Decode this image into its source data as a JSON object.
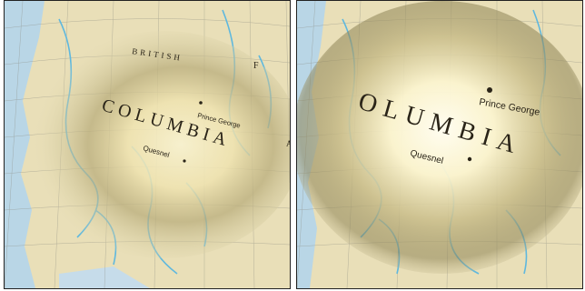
{
  "colors": {
    "land": "#e9dfb8",
    "water": "#b9d6e6",
    "river": "#5fb8de",
    "grid": "#8a8a80",
    "lens_glow": "#fffbe0",
    "lens_halo": "#8a7f52"
  },
  "left_panel": {
    "region_label_top": "BRITISH",
    "region_letter_right": "F",
    "region_label_main": [
      "COLUMBIA"
    ],
    "right_edge_letter": "A",
    "cities": [
      {
        "name": "Prince George"
      },
      {
        "name": "Quesnel"
      }
    ]
  },
  "right_panel": {
    "region_label_main": [
      "OLUMBIA"
    ],
    "cities": [
      {
        "name": "Prince George"
      },
      {
        "name": "Quesnel"
      }
    ]
  }
}
